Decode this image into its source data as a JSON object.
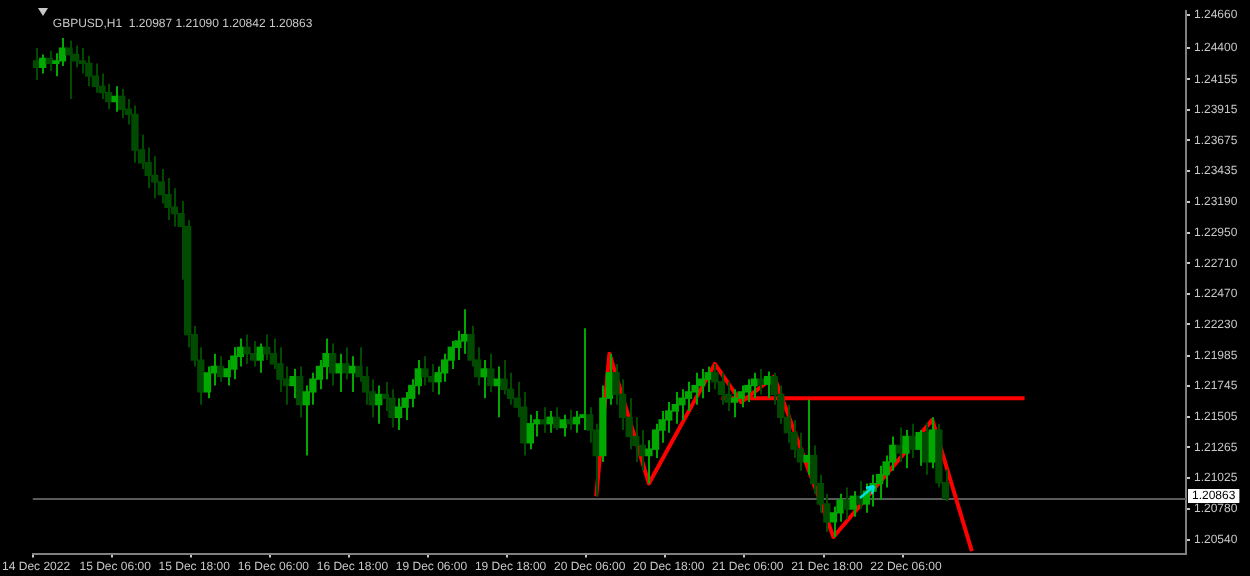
{
  "chart_data": {
    "type": "candlestick",
    "title": "GBPUSD,H1  1.20987 1.21090 1.20842 1.20863",
    "colors": [
      "#004b00",
      "#00a800",
      "#004b00",
      "#00a800",
      "#00a800",
      "#004b00",
      "#004b00",
      "#004b00",
      "#004b00",
      "#004b00",
      "#004b00",
      "#004b00",
      "#00a800",
      "#004b00",
      "#004b00",
      "#004b00",
      "#004b00",
      "#004b00",
      "#004b00",
      "#004b00",
      "#004b00",
      "#004b00",
      "#004b00",
      "#004b00",
      "#004b00",
      "#004b00",
      "#00a800",
      "#00a800",
      "#004b00",
      "#00a800",
      "#00a800",
      "#00a800",
      "#004b00",
      "#004b00",
      "#00a800",
      "#004b00",
      "#004b00",
      "#004b00",
      "#004b00",
      "#00a800",
      "#004b00",
      "#00a800",
      "#00a800",
      "#00a800",
      "#00a800",
      "#004b00",
      "#00a800",
      "#004b00",
      "#00a800",
      "#004b00",
      "#004b00",
      "#004b00",
      "#00a800",
      "#004b00",
      "#004b00",
      "#00a800",
      "#00a800",
      "#00a800",
      "#00a800",
      "#004b00",
      "#004b00",
      "#00a800",
      "#00a800",
      "#00a800",
      "#00a800",
      "#00a800",
      "#004b00",
      "#004b00",
      "#00a800",
      "#004b00",
      "#00a800",
      "#004b00",
      "#004b00",
      "#004b00",
      "#004b00",
      "#00a800",
      "#00a800",
      "#004b00",
      "#00a800",
      "#004b00",
      "#00a800",
      "#004b00",
      "#00a800",
      "#00a800",
      "#004b00",
      "#004b00",
      "#00a800",
      "#00a800",
      "#004b00",
      "#004b00",
      "#004b00",
      "#004b00",
      "#004b00",
      "#00a800",
      "#00a800",
      "#00a800",
      "#00a800",
      "#00a800",
      "#00a800",
      "#00a800",
      "#00a800",
      "#00a800",
      "#00a800",
      "#004b00",
      "#004b00",
      "#004b00",
      "#00a800",
      "#00a800",
      "#00a800",
      "#00a800",
      "#004b00",
      "#00a800",
      "#004b00",
      "#004b00",
      "#004b00",
      "#004b00",
      "#004b00",
      "#00a800",
      "#004b00",
      "#004b00",
      "#004b00",
      "#00a800",
      "#00a800",
      "#004b00",
      "#00a800",
      "#004b00",
      "#00a800",
      "#00a800",
      "#00a800",
      "#00a800",
      "#00a800",
      "#004b00",
      "#00a800",
      "#004b00",
      "#00a800",
      "#004b00",
      "#00a800",
      "#004b00",
      "#004b00",
      null,
      null,
      null,
      null,
      null,
      null,
      null,
      null,
      null,
      null,
      null,
      null,
      null,
      null,
      null,
      null,
      null,
      null,
      null,
      null,
      null,
      null,
      null,
      null,
      null,
      null,
      null,
      null,
      null,
      null,
      null,
      null,
      null,
      null,
      null,
      null
    ],
    "categories": [
      "14 Dec 2022",
      null,
      null,
      null,
      null,
      null,
      null,
      null,
      null,
      null,
      null,
      null,
      "15 Dec 06:00",
      null,
      null,
      null,
      null,
      null,
      null,
      null,
      null,
      null,
      null,
      null,
      "15 Dec 18:00",
      null,
      null,
      null,
      null,
      null,
      null,
      null,
      null,
      null,
      null,
      null,
      "16 Dec 06:00",
      null,
      null,
      null,
      null,
      null,
      null,
      null,
      null,
      null,
      null,
      null,
      "16 Dec 18:00",
      null,
      null,
      null,
      null,
      null,
      null,
      null,
      null,
      null,
      null,
      null,
      "19 Dec 06:00",
      null,
      null,
      null,
      null,
      null,
      null,
      null,
      null,
      null,
      null,
      null,
      "19 Dec 18:00",
      null,
      null,
      null,
      null,
      null,
      null,
      null,
      null,
      null,
      null,
      null,
      "20 Dec 06:00",
      null,
      null,
      null,
      null,
      null,
      null,
      null,
      null,
      null,
      null,
      null,
      "20 Dec 18:00",
      null,
      null,
      null,
      null,
      null,
      null,
      null,
      null,
      null,
      null,
      null,
      "21 Dec 06:00",
      null,
      null,
      null,
      null,
      null,
      null,
      null,
      null,
      null,
      null,
      null,
      "21 Dec 18:00",
      null,
      null,
      null,
      null,
      null,
      null,
      null,
      null,
      null,
      null,
      null,
      "22 Dec 06:00",
      null,
      null,
      null,
      null,
      null,
      null,
      null,
      null,
      null,
      null,
      null,
      null,
      null,
      null,
      null,
      null,
      null,
      null,
      null,
      null,
      null,
      null,
      null,
      null,
      null,
      null,
      null,
      null,
      null,
      null,
      null,
      null,
      null,
      null,
      null,
      null,
      null,
      null,
      null,
      null,
      null,
      null
    ],
    "ohlc": [
      [
        1.243,
        1.244,
        1.2415,
        1.2425
      ],
      [
        1.2425,
        1.2435,
        1.242,
        1.2432
      ],
      [
        1.2432,
        1.2438,
        1.2422,
        1.2428
      ],
      [
        1.2428,
        1.2436,
        1.2418,
        1.243
      ],
      [
        1.243,
        1.2448,
        1.2426,
        1.244
      ],
      [
        1.244,
        1.2446,
        1.24,
        1.2435
      ],
      [
        1.2435,
        1.2442,
        1.2425,
        1.243
      ],
      [
        1.243,
        1.244,
        1.242,
        1.2428
      ],
      [
        1.2428,
        1.2434,
        1.241,
        1.2418
      ],
      [
        1.2418,
        1.2428,
        1.2405,
        1.241
      ],
      [
        1.241,
        1.242,
        1.24,
        1.2405
      ],
      [
        1.2405,
        1.2412,
        1.2392,
        1.2398
      ],
      [
        1.2398,
        1.241,
        1.239,
        1.2402
      ],
      [
        1.2402,
        1.2408,
        1.2385,
        1.2392
      ],
      [
        1.2392,
        1.24,
        1.238,
        1.2388
      ],
      [
        1.2388,
        1.2395,
        1.235,
        1.236
      ],
      [
        1.236,
        1.2372,
        1.2345,
        1.235
      ],
      [
        1.235,
        1.2362,
        1.233,
        1.234
      ],
      [
        1.234,
        1.2355,
        1.2322,
        1.2335
      ],
      [
        1.2335,
        1.2345,
        1.2318,
        1.2325
      ],
      [
        1.2325,
        1.2338,
        1.2305,
        1.2315
      ],
      [
        1.2315,
        1.233,
        1.23,
        1.231
      ],
      [
        1.231,
        1.232,
        1.2258,
        1.23
      ],
      [
        1.23,
        1.2305,
        1.2205,
        1.2215
      ],
      [
        1.2215,
        1.2222,
        1.219,
        1.2195
      ],
      [
        1.2195,
        1.2205,
        1.216,
        1.217
      ],
      [
        1.217,
        1.219,
        1.2165,
        1.2185
      ],
      [
        1.2185,
        1.22,
        1.2175,
        1.219
      ],
      [
        1.219,
        1.2198,
        1.2178,
        1.2182
      ],
      [
        1.2182,
        1.2195,
        1.2175,
        1.2188
      ],
      [
        1.2188,
        1.2205,
        1.218,
        1.2198
      ],
      [
        1.2198,
        1.2212,
        1.219,
        1.2205
      ],
      [
        1.2205,
        1.2215,
        1.2192,
        1.22
      ],
      [
        1.22,
        1.221,
        1.219,
        1.2195
      ],
      [
        1.2195,
        1.2208,
        1.2185,
        1.2205
      ],
      [
        1.2205,
        1.2215,
        1.2195,
        1.22
      ],
      [
        1.22,
        1.2212,
        1.2188,
        1.2192
      ],
      [
        1.2192,
        1.2205,
        1.217,
        1.218
      ],
      [
        1.218,
        1.219,
        1.216,
        1.2175
      ],
      [
        1.2175,
        1.2188,
        1.2165,
        1.2182
      ],
      [
        1.2182,
        1.219,
        1.215,
        1.216
      ],
      [
        1.216,
        1.2175,
        1.212,
        1.217
      ],
      [
        1.217,
        1.2185,
        1.216,
        1.218
      ],
      [
        1.218,
        1.2195,
        1.2172,
        1.219
      ],
      [
        1.219,
        1.2212,
        1.218,
        1.22
      ],
      [
        1.22,
        1.2208,
        1.2175,
        1.2185
      ],
      [
        1.2185,
        1.22,
        1.217,
        1.2192
      ],
      [
        1.2192,
        1.2205,
        1.218,
        1.2185
      ],
      [
        1.2185,
        1.2198,
        1.217,
        1.219
      ],
      [
        1.219,
        1.2205,
        1.2178,
        1.2182
      ],
      [
        1.2182,
        1.219,
        1.216,
        1.217
      ],
      [
        1.217,
        1.218,
        1.215,
        1.216
      ],
      [
        1.216,
        1.2175,
        1.2145,
        1.2168
      ],
      [
        1.2168,
        1.2178,
        1.2155,
        1.2165
      ],
      [
        1.2165,
        1.2172,
        1.2142,
        1.215
      ],
      [
        1.215,
        1.2165,
        1.214,
        1.2158
      ],
      [
        1.2158,
        1.217,
        1.2148,
        1.2165
      ],
      [
        1.2165,
        1.218,
        1.2158,
        1.2175
      ],
      [
        1.2175,
        1.2195,
        1.2168,
        1.2188
      ],
      [
        1.2188,
        1.2198,
        1.2175,
        1.2182
      ],
      [
        1.2182,
        1.2192,
        1.217,
        1.2178
      ],
      [
        1.2178,
        1.219,
        1.2168,
        1.2185
      ],
      [
        1.2185,
        1.22,
        1.2178,
        1.2195
      ],
      [
        1.2195,
        1.221,
        1.2188,
        1.2205
      ],
      [
        1.2205,
        1.2218,
        1.2195,
        1.221
      ],
      [
        1.221,
        1.2235,
        1.22,
        1.2215
      ],
      [
        1.2215,
        1.2222,
        1.219,
        1.2195
      ],
      [
        1.2195,
        1.2205,
        1.2175,
        1.2182
      ],
      [
        1.2182,
        1.2195,
        1.2165,
        1.2188
      ],
      [
        1.2188,
        1.22,
        1.217,
        1.2175
      ],
      [
        1.2175,
        1.219,
        1.215,
        1.218
      ],
      [
        1.218,
        1.2195,
        1.2168,
        1.2172
      ],
      [
        1.2172,
        1.2185,
        1.216,
        1.2165
      ],
      [
        1.2165,
        1.2178,
        1.215,
        1.2158
      ],
      [
        1.2158,
        1.217,
        1.212,
        1.213
      ],
      [
        1.213,
        1.2152,
        1.2125,
        1.2145
      ],
      [
        1.2145,
        1.2155,
        1.2135,
        1.2148
      ],
      [
        1.2148,
        1.2158,
        1.2138,
        1.2145
      ],
      [
        1.2145,
        1.2155,
        1.2138,
        1.215
      ],
      [
        1.215,
        1.2158,
        1.214,
        1.2142
      ],
      [
        1.2142,
        1.2152,
        1.2135,
        1.2148
      ],
      [
        1.2148,
        1.2156,
        1.214,
        1.2145
      ],
      [
        1.2145,
        1.2155,
        1.2138,
        1.215
      ],
      [
        1.215,
        1.222,
        1.214,
        1.2152
      ],
      [
        1.2152,
        1.2158,
        1.213,
        1.214
      ],
      [
        1.214,
        1.2145,
        1.2088,
        1.212
      ],
      [
        1.212,
        1.2175,
        1.2115,
        1.2165
      ],
      [
        1.2165,
        1.22,
        1.216,
        1.2185
      ],
      [
        1.2185,
        1.2192,
        1.216,
        1.2168
      ],
      [
        1.2168,
        1.218,
        1.214,
        1.215
      ],
      [
        1.215,
        1.2165,
        1.2125,
        1.2135
      ],
      [
        1.2135,
        1.215,
        1.2115,
        1.2128
      ],
      [
        1.2128,
        1.214,
        1.2108,
        1.212
      ],
      [
        1.212,
        1.2132,
        1.2098,
        1.2125
      ],
      [
        1.2125,
        1.2145,
        1.2118,
        1.214
      ],
      [
        1.214,
        1.2155,
        1.213,
        1.2148
      ],
      [
        1.2148,
        1.2162,
        1.2138,
        1.2155
      ],
      [
        1.2155,
        1.217,
        1.2145,
        1.216
      ],
      [
        1.216,
        1.2172,
        1.2148,
        1.2165
      ],
      [
        1.2165,
        1.2178,
        1.2155,
        1.217
      ],
      [
        1.217,
        1.2185,
        1.216,
        1.2175
      ],
      [
        1.2175,
        1.2188,
        1.2165,
        1.218
      ],
      [
        1.218,
        1.219,
        1.217,
        1.2185
      ],
      [
        1.2185,
        1.2192,
        1.2172,
        1.2178
      ],
      [
        1.2178,
        1.2185,
        1.216,
        1.2168
      ],
      [
        1.2168,
        1.2178,
        1.2155,
        1.2162
      ],
      [
        1.2162,
        1.2172,
        1.215,
        1.2165
      ],
      [
        1.2165,
        1.2175,
        1.2158,
        1.217
      ],
      [
        1.217,
        1.218,
        1.2162,
        1.2175
      ],
      [
        1.2175,
        1.2185,
        1.2165,
        1.218
      ],
      [
        1.218,
        1.2188,
        1.2168,
        1.2176
      ],
      [
        1.2176,
        1.2186,
        1.2165,
        1.2182
      ],
      [
        1.2182,
        1.2185,
        1.216,
        1.2168
      ],
      [
        1.2168,
        1.2175,
        1.2145,
        1.215
      ],
      [
        1.215,
        1.216,
        1.213,
        1.2138
      ],
      [
        1.2138,
        1.2148,
        1.2118,
        1.2125
      ],
      [
        1.2125,
        1.2138,
        1.2108,
        1.2115
      ],
      [
        1.2115,
        1.2164,
        1.2105,
        1.212
      ],
      [
        1.212,
        1.2128,
        1.209,
        1.2098
      ],
      [
        1.2098,
        1.2105,
        1.2075,
        1.2082
      ],
      [
        1.2082,
        1.209,
        1.206,
        1.2068
      ],
      [
        1.2068,
        1.208,
        1.2056,
        1.2075
      ],
      [
        1.2075,
        1.209,
        1.2068,
        1.2085
      ],
      [
        1.2085,
        1.2095,
        1.207,
        1.2078
      ],
      [
        1.2078,
        1.2092,
        1.2072,
        1.2088
      ],
      [
        1.2088,
        1.21,
        1.2078,
        1.2082
      ],
      [
        1.2082,
        1.2098,
        1.2075,
        1.2092
      ],
      [
        1.2092,
        1.2105,
        1.208,
        1.2098
      ],
      [
        1.2098,
        1.2112,
        1.2085,
        1.2105
      ],
      [
        1.2105,
        1.212,
        1.2095,
        1.2115
      ],
      [
        1.2115,
        1.2135,
        1.2108,
        1.2128
      ],
      [
        1.2128,
        1.2142,
        1.2115,
        1.2122
      ],
      [
        1.2122,
        1.214,
        1.211,
        1.2135
      ],
      [
        1.2135,
        1.2145,
        1.2118,
        1.2125
      ],
      [
        1.2125,
        1.214,
        1.2112,
        1.2138
      ],
      [
        1.2138,
        1.2146,
        1.2105,
        1.2115
      ],
      [
        1.2115,
        1.215,
        1.211,
        1.214
      ],
      [
        1.214,
        1.2145,
        1.2095,
        1.20987
      ],
      [
        1.20987,
        1.2109,
        1.20842,
        1.20863
      ],
      null,
      null,
      null,
      null,
      null,
      null,
      null,
      null,
      null,
      null,
      null,
      null,
      null,
      null,
      null,
      null,
      null,
      null,
      null,
      null,
      null,
      null,
      null,
      null,
      null,
      null,
      null,
      null,
      null,
      null,
      null,
      null,
      null,
      null,
      null,
      null
    ],
    "series": [
      {
        "type": "line",
        "color": "#ff0000",
        "values": [
          null,
          null,
          null,
          null,
          null,
          null,
          null,
          null,
          null,
          null,
          null,
          null,
          null,
          null,
          null,
          null,
          null,
          null,
          null,
          null,
          null,
          null,
          null,
          null,
          null,
          null,
          null,
          null,
          null,
          null,
          null,
          null,
          null,
          null,
          null,
          null,
          null,
          null,
          null,
          null,
          null,
          null,
          null,
          null,
          null,
          null,
          null,
          null,
          null,
          null,
          null,
          null,
          null,
          null,
          null,
          null,
          null,
          null,
          null,
          null,
          null,
          null,
          null,
          null,
          null,
          null,
          null,
          null,
          null,
          null,
          null,
          null,
          null,
          null,
          null,
          null,
          null,
          null,
          null,
          null,
          null,
          null,
          null,
          null,
          null,
          1.2088,
          null,
          1.22,
          null,
          null,
          null,
          null,
          null,
          1.2098,
          null,
          null,
          null,
          null,
          null,
          null,
          null,
          null,
          null,
          1.2192,
          null,
          null,
          null,
          1.2162,
          null,
          null,
          null,
          null,
          1.2182,
          null,
          null,
          null,
          null,
          null,
          null,
          null,
          null,
          1.2056,
          null,
          null,
          null,
          null,
          null,
          null,
          null,
          null,
          null,
          null,
          null,
          null,
          null,
          null,
          1.2148,
          null,
          null,
          null,
          null,
          null,
          1.2045,
          null,
          null,
          null,
          null,
          null,
          null,
          null,
          null,
          null,
          null,
          null,
          null,
          null,
          null,
          null,
          null,
          null,
          null,
          null,
          null,
          null,
          null,
          null,
          null,
          null,
          null,
          null,
          null,
          null,
          null,
          null,
          null
        ]
      },
      {
        "type": "line",
        "color": "#ff0000",
        "values": [
          null,
          null,
          null,
          null,
          null,
          null,
          null,
          null,
          null,
          null,
          null,
          null,
          null,
          null,
          null,
          null,
          null,
          null,
          null,
          null,
          null,
          null,
          null,
          null,
          null,
          null,
          null,
          null,
          null,
          null,
          null,
          null,
          null,
          null,
          null,
          null,
          null,
          null,
          null,
          null,
          null,
          null,
          null,
          null,
          null,
          null,
          null,
          null,
          null,
          null,
          null,
          null,
          null,
          null,
          null,
          null,
          null,
          null,
          null,
          null,
          null,
          null,
          null,
          null,
          null,
          null,
          null,
          null,
          null,
          null,
          null,
          null,
          null,
          null,
          null,
          null,
          null,
          null,
          null,
          null,
          null,
          null,
          null,
          null,
          null,
          null,
          null,
          null,
          null,
          null,
          null,
          null,
          null,
          null,
          null,
          null,
          null,
          null,
          null,
          null,
          null,
          null,
          null,
          null,
          1.2165,
          null,
          null,
          null,
          null,
          null,
          null,
          null,
          null,
          null,
          null,
          null,
          null,
          null,
          null,
          null,
          null,
          null,
          null,
          null,
          null,
          null,
          null,
          null,
          null,
          null,
          null,
          null,
          null,
          null,
          null,
          null,
          null,
          null,
          null,
          null,
          null,
          null,
          null,
          null,
          null,
          null,
          null,
          null,
          null,
          null,
          1.2165,
          null,
          null,
          null,
          null,
          null,
          null,
          null,
          null,
          null,
          null,
          null,
          null,
          null,
          null,
          null,
          null,
          null,
          null,
          null,
          null,
          null,
          null,
          null,
          null
        ]
      }
    ],
    "ylim": [
      1.2043,
      1.2469
    ],
    "yticks": [
      {
        "value": 1.2466,
        "label": "1.24660"
      },
      {
        "value": 1.244,
        "label": "1.24400"
      },
      {
        "value": 1.24155,
        "label": "1.24155"
      },
      {
        "value": 1.23915,
        "label": "1.23915"
      },
      {
        "value": 1.23675,
        "label": "1.23675"
      },
      {
        "value": 1.23435,
        "label": "1.23435"
      },
      {
        "value": 1.2319,
        "label": "1.23190"
      },
      {
        "value": 1.2295,
        "label": "1.22950"
      },
      {
        "value": 1.2271,
        "label": "1.22710"
      },
      {
        "value": 1.2247,
        "label": "1.22470"
      },
      {
        "value": 1.2223,
        "label": "1.22230"
      },
      {
        "value": 1.21985,
        "label": "1.21985"
      },
      {
        "value": 1.21745,
        "label": "1.21745"
      },
      {
        "value": 1.21505,
        "label": "1.21505"
      },
      {
        "value": 1.21265,
        "label": "1.21265"
      },
      {
        "value": 1.21025,
        "label": "1.21025"
      },
      {
        "value": 1.2078,
        "label": "1.20780"
      },
      {
        "value": 1.2054,
        "label": "1.20540"
      }
    ],
    "ref_lines": [
      {
        "axis": "y",
        "value": 1.20863,
        "label": "1.20863",
        "color": "#5a5a5a"
      }
    ]
  }
}
